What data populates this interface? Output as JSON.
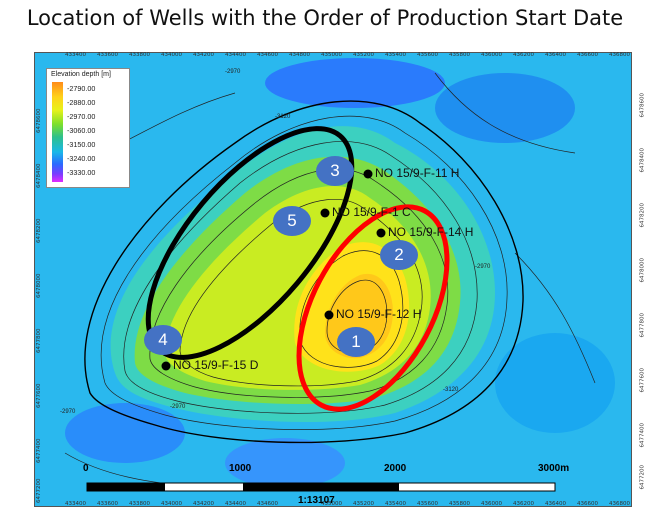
{
  "title": "Location of Wells with the Order of Production Start Date",
  "legend": {
    "title": "Elevation depth [m]",
    "entries": [
      "-2790.00",
      "-2880.00",
      "-2970.00",
      "-3060.00",
      "-3150.00",
      "-3240.00",
      "-3330.00"
    ]
  },
  "axis_ticks": {
    "x": [
      "433400",
      "433600",
      "433800",
      "434000",
      "434200",
      "434400",
      "434600",
      "434800",
      "435000",
      "435200",
      "435400",
      "435600",
      "435800",
      "436000",
      "436200",
      "436400",
      "436600",
      "436800"
    ],
    "y_left": [
      "6478600",
      "6478400",
      "6478200",
      "6478000",
      "6477800",
      "6477600",
      "6477400",
      "6477200"
    ],
    "y_right": [
      "6478600",
      "6478400",
      "6478200",
      "6478000",
      "6477800",
      "6477600",
      "6477400",
      "6477200"
    ]
  },
  "wells": [
    {
      "name": "NO 15/9-F-11 H"
    },
    {
      "name": "NO 15/9-F-1 C"
    },
    {
      "name": "NO 15/9-F-14 H"
    },
    {
      "name": "NO 15/9-F-12 H"
    },
    {
      "name": "NO 15/9-F-15 D"
    }
  ],
  "order_badges": [
    "3",
    "5",
    "2",
    "1",
    "4"
  ],
  "contour_labels": [
    "-2970",
    "-3120",
    "-2970",
    "-2970",
    "-3120",
    "-2970"
  ],
  "scale_bar": {
    "ticks": [
      "0",
      "1000",
      "2000",
      "3000m"
    ],
    "ratio": "1:13107"
  },
  "colors": {
    "highlight_red": "#ff0000",
    "highlight_black": "#000000",
    "badge_blue": "#4472c4"
  }
}
